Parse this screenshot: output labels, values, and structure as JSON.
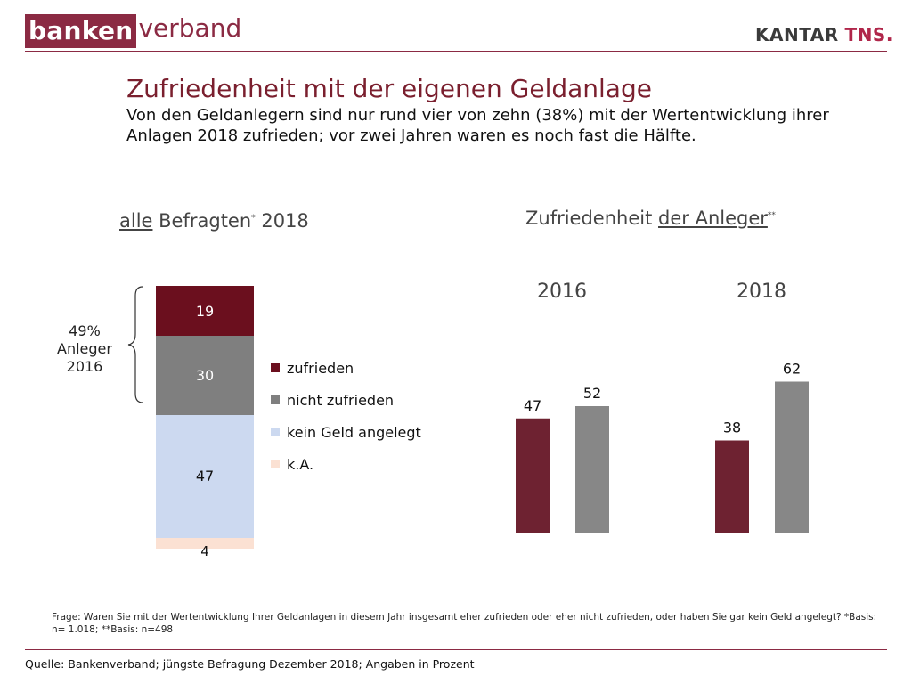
{
  "header": {
    "logo_part1": "banken",
    "logo_part2": "verband",
    "kantar_part1": "KANTAR",
    "kantar_part2": "TNS."
  },
  "title": "Zufriedenheit mit der eigenen Geldanlage",
  "subtitle": "Von den Geldanlegern sind nur rund vier von zehn (38%) mit der Wertentwicklung ihrer Anlagen 2018 zufrieden; vor zwei Jahren waren es noch fast die Hälfte.",
  "left_heading": {
    "underlined": "alle",
    "rest": " Befragten",
    "sup": "*",
    "year": " 2018"
  },
  "right_heading": {
    "plain": "Zufriedenheit ",
    "underlined": "der Anleger",
    "sup": "**"
  },
  "brace_label": [
    "49%",
    "Anleger",
    "2016"
  ],
  "colors": {
    "zufrieden": "#6b0f1e",
    "nicht_zufrieden": "#7f7f7f",
    "kein_geld": "#ccd9f0",
    "ka": "#fbe1d3",
    "bar_zufrieden": "#6e2231",
    "bar_nicht": "#878787",
    "accent": "#8b2a43"
  },
  "chart_data": [
    {
      "type": "bar",
      "stacked": true,
      "categories": [
        "alle Befragten 2018"
      ],
      "series": [
        {
          "name": "zufrieden",
          "values": [
            19
          ]
        },
        {
          "name": "nicht zufrieden",
          "values": [
            30
          ]
        },
        {
          "name": "kein Geld angelegt",
          "values": [
            47
          ]
        },
        {
          "name": "k.A.",
          "values": [
            4
          ]
        }
      ],
      "ylim": [
        0,
        100
      ],
      "legend": "right"
    },
    {
      "type": "bar",
      "title": "Zufriedenheit der Anleger",
      "categories": [
        "2016",
        "2018"
      ],
      "series": [
        {
          "name": "zufrieden",
          "values": [
            47,
            38
          ]
        },
        {
          "name": "nicht zufrieden",
          "values": [
            52,
            62
          ]
        }
      ],
      "ylim": [
        0,
        100
      ]
    }
  ],
  "footer": {
    "question": "Frage: Waren Sie mit der Wertentwicklung Ihrer Geldanlagen in diesem Jahr insgesamt eher zufrieden oder eher nicht zufrieden, oder haben Sie gar kein Geld angelegt? *Basis: n= 1.018; **Basis: n=498",
    "source": "Quelle: Bankenverband; jüngste Befragung Dezember 2018; Angaben in Prozent"
  }
}
